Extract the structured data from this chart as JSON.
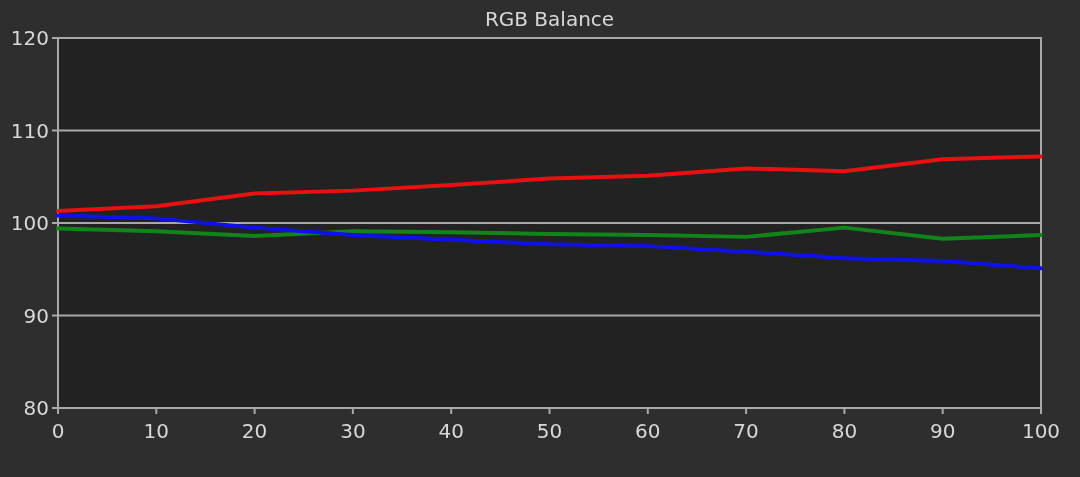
{
  "chart_data": {
    "type": "line",
    "title": "RGB Balance",
    "x": [
      0,
      10,
      20,
      30,
      40,
      50,
      60,
      70,
      80,
      90,
      100
    ],
    "series": [
      {
        "color": "#e81010",
        "values": [
          101.3,
          101.8,
          103.2,
          103.5,
          104.1,
          104.8,
          105.1,
          105.9,
          105.6,
          106.9,
          107.2
        ]
      },
      {
        "color": "#12851a",
        "values": [
          99.4,
          99.1,
          98.6,
          99.1,
          99.0,
          98.8,
          98.7,
          98.5,
          99.5,
          98.3,
          98.7
        ]
      },
      {
        "color": "#1010e8",
        "values": [
          100.8,
          100.5,
          99.5,
          98.7,
          98.2,
          97.7,
          97.5,
          96.9,
          96.2,
          95.9,
          95.1
        ]
      }
    ],
    "xlim": [
      0,
      100
    ],
    "xticks": [
      0,
      10,
      20,
      30,
      40,
      50,
      60,
      70,
      80,
      90,
      100
    ],
    "ylim": [
      80,
      120
    ],
    "yticks": [
      80,
      90,
      100,
      110,
      120
    ],
    "grid": "y",
    "marker": "none",
    "line_style": "solid"
  }
}
